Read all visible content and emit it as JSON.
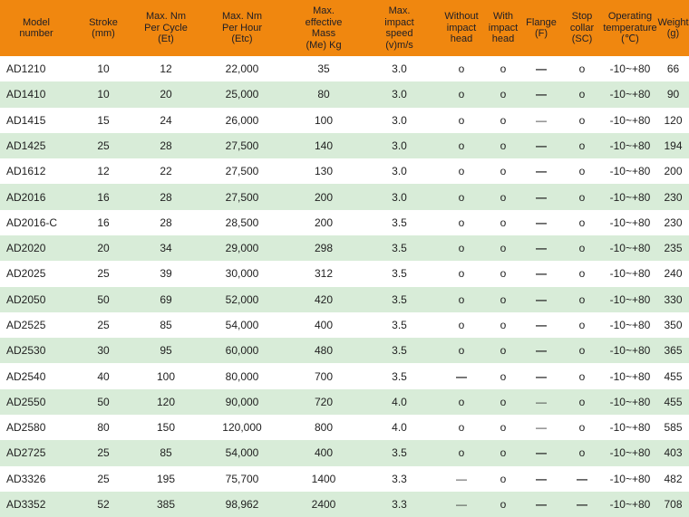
{
  "colors": {
    "header_bg": "#F0870F",
    "row_alt_bg": "#D8ECD8",
    "text": "#1F1F1F"
  },
  "symbols": {
    "available": "o",
    "dash-bold": "—",
    "dash-thin": "—"
  },
  "table": {
    "columns": [
      {
        "id": "model-number",
        "label": "Model\nnumber"
      },
      {
        "id": "stroke",
        "label": "Stroke\n(mm)"
      },
      {
        "id": "max-nm-per-cycle",
        "label": "Max. Nm\nPer Cycle\n(Et)"
      },
      {
        "id": "max-nm-per-hour",
        "label": "Max. Nm\nPer Hour\n(Etc)"
      },
      {
        "id": "max-effective-mass",
        "label": "Max.\neffective\nMass\n(Me) Kg"
      },
      {
        "id": "max-impact-speed",
        "label": "Max.\nimpact\nspeed\n(v)m/s"
      },
      {
        "id": "without-impact-head",
        "label": "Without\nimpact\nhead"
      },
      {
        "id": "with-impact-head",
        "label": "With\nimpact\nhead"
      },
      {
        "id": "flange",
        "label": "Flange\n(F)"
      },
      {
        "id": "stop-collar",
        "label": "Stop\ncollar\n(SC)"
      },
      {
        "id": "operating-temperature",
        "label": "Operating\ntemperature\n(℃)"
      },
      {
        "id": "weight",
        "label": "Weight\n(g)"
      }
    ],
    "rows": [
      {
        "cells": [
          "AD1210",
          "10",
          "12",
          "22,000",
          "35",
          "3.0",
          "o",
          "o",
          "dash-bold",
          "o",
          "-10~+80",
          "66"
        ]
      },
      {
        "cells": [
          "AD1410",
          "10",
          "20",
          "25,000",
          "80",
          "3.0",
          "o",
          "o",
          "dash-bold",
          "o",
          "-10~+80",
          "90"
        ]
      },
      {
        "cells": [
          "AD1415",
          "15",
          "24",
          "26,000",
          "100",
          "3.0",
          "o",
          "o",
          "dash-thin",
          "o",
          "-10~+80",
          "120"
        ]
      },
      {
        "cells": [
          "AD1425",
          "25",
          "28",
          "27,500",
          "140",
          "3.0",
          "o",
          "o",
          "dash-bold",
          "o",
          "-10~+80",
          "194"
        ]
      },
      {
        "cells": [
          "AD1612",
          "12",
          "22",
          "27,500",
          "130",
          "3.0",
          "o",
          "o",
          "dash-bold",
          "o",
          "-10~+80",
          "200"
        ]
      },
      {
        "cells": [
          "AD2016",
          "16",
          "28",
          "27,500",
          "200",
          "3.0",
          "o",
          "o",
          "dash-bold",
          "o",
          "-10~+80",
          "230"
        ]
      },
      {
        "cells": [
          "AD2016-C",
          "16",
          "28",
          "28,500",
          "200",
          "3.5",
          "o",
          "o",
          "dash-bold",
          "o",
          "-10~+80",
          "230"
        ]
      },
      {
        "cells": [
          "AD2020",
          "20",
          "34",
          "29,000",
          "298",
          "3.5",
          "o",
          "o",
          "dash-bold",
          "o",
          "-10~+80",
          "235"
        ]
      },
      {
        "cells": [
          "AD2025",
          "25",
          "39",
          "30,000",
          "312",
          "3.5",
          "o",
          "o",
          "dash-bold",
          "o",
          "-10~+80",
          "240"
        ]
      },
      {
        "cells": [
          "AD2050",
          "50",
          "69",
          "52,000",
          "420",
          "3.5",
          "o",
          "o",
          "dash-bold",
          "o",
          "-10~+80",
          "330"
        ]
      },
      {
        "cells": [
          "AD2525",
          "25",
          "85",
          "54,000",
          "400",
          "3.5",
          "o",
          "o",
          "dash-bold",
          "o",
          "-10~+80",
          "350"
        ]
      },
      {
        "cells": [
          "AD2530",
          "30",
          "95",
          "60,000",
          "480",
          "3.5",
          "o",
          "o",
          "dash-bold",
          "o",
          "-10~+80",
          "365"
        ]
      },
      {
        "cells": [
          "AD2540",
          "40",
          "100",
          "80,000",
          "700",
          "3.5",
          "dash-bold",
          "o",
          "dash-bold",
          "o",
          "-10~+80",
          "455"
        ]
      },
      {
        "cells": [
          "AD2550",
          "50",
          "120",
          "90,000",
          "720",
          "4.0",
          "o",
          "o",
          "dash-thin",
          "o",
          "-10~+80",
          "455"
        ]
      },
      {
        "cells": [
          "AD2580",
          "80",
          "150",
          "120,000",
          "800",
          "4.0",
          "o",
          "o",
          "dash-thin",
          "o",
          "-10~+80",
          "585"
        ]
      },
      {
        "cells": [
          "AD2725",
          "25",
          "85",
          "54,000",
          "400",
          "3.5",
          "o",
          "o",
          "dash-bold",
          "o",
          "-10~+80",
          "403"
        ]
      },
      {
        "cells": [
          "AD3326",
          "25",
          "195",
          "75,700",
          "1400",
          "3.3",
          "dash-thin",
          "o",
          "dash-bold",
          "dash-bold",
          "-10~+80",
          "482"
        ]
      },
      {
        "cells": [
          "AD3352",
          "52",
          "385",
          "98,962",
          "2400",
          "3.3",
          "dash-thin",
          "o",
          "dash-bold",
          "dash-bold",
          "-10~+80",
          "708"
        ]
      }
    ]
  }
}
